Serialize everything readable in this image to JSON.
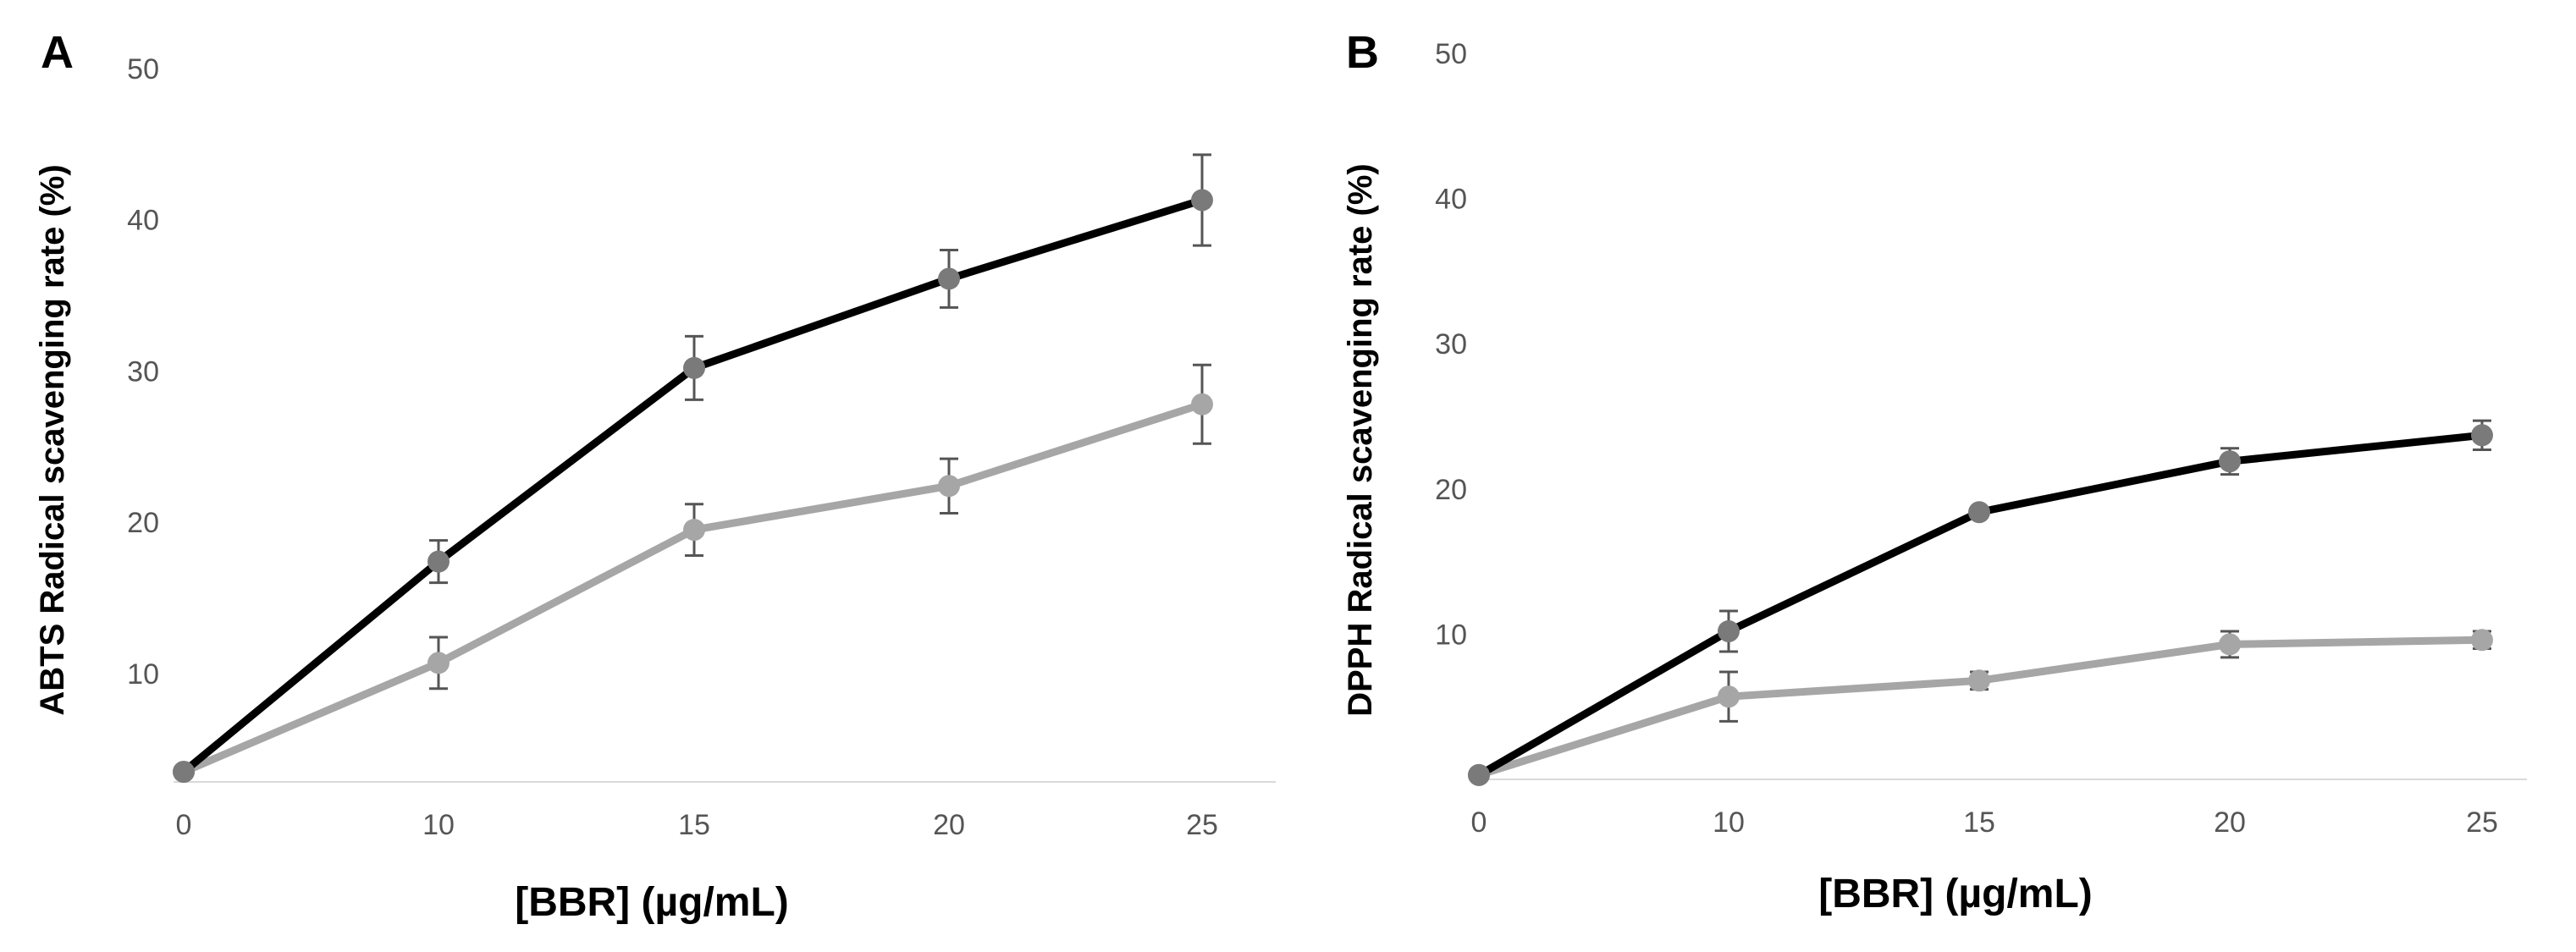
{
  "chart_data": [
    {
      "type": "line",
      "panel_label": "A",
      "title": "",
      "xlabel": "[BBR] (µg/mL)",
      "ylabel": "ABTS Radical scavenging rate (%)",
      "x": [
        0,
        10,
        15,
        20,
        25
      ],
      "xticks": [
        "0",
        "10",
        "15",
        "20",
        "25"
      ],
      "yticks": [
        "10",
        "20",
        "30",
        "40",
        "50"
      ],
      "ylim": [
        3,
        50
      ],
      "grid": false,
      "series": [
        {
          "name": "black series",
          "color": "#000000",
          "marker_color": "#7a7a7a",
          "values": [
            3.5,
            17.4,
            30.2,
            36.1,
            41.3
          ],
          "errors": [
            0,
            1.4,
            2.1,
            1.9,
            3.0
          ]
        },
        {
          "name": "gray series",
          "color": "#a6a6a6",
          "marker_color": "#a6a6a6",
          "values": [
            3.5,
            10.7,
            19.5,
            22.4,
            27.8
          ],
          "errors": [
            0,
            1.7,
            1.7,
            1.8,
            2.6
          ]
        }
      ]
    },
    {
      "type": "line",
      "panel_label": "B",
      "title": "",
      "xlabel": "[BBR] (µg/mL)",
      "ylabel": "DPPH Radical scavenging rate (%)",
      "x": [
        0,
        10,
        15,
        20,
        25
      ],
      "xticks": [
        "0",
        "10",
        "15",
        "20",
        "25"
      ],
      "yticks": [
        "10",
        "20",
        "30",
        "40",
        "50"
      ],
      "ylim": [
        0,
        50
      ],
      "grid": false,
      "series": [
        {
          "name": "black series",
          "color": "#000000",
          "marker_color": "#7a7a7a",
          "values": [
            0.3,
            10.2,
            18.4,
            21.9,
            23.7
          ],
          "errors": [
            0,
            1.4,
            0.3,
            0.9,
            1.0
          ]
        },
        {
          "name": "gray series",
          "color": "#a6a6a6",
          "marker_color": "#a6a6a6",
          "values": [
            0.3,
            5.7,
            6.8,
            9.3,
            9.6
          ],
          "errors": [
            0,
            1.7,
            0.6,
            0.9,
            0.6
          ]
        }
      ]
    }
  ]
}
